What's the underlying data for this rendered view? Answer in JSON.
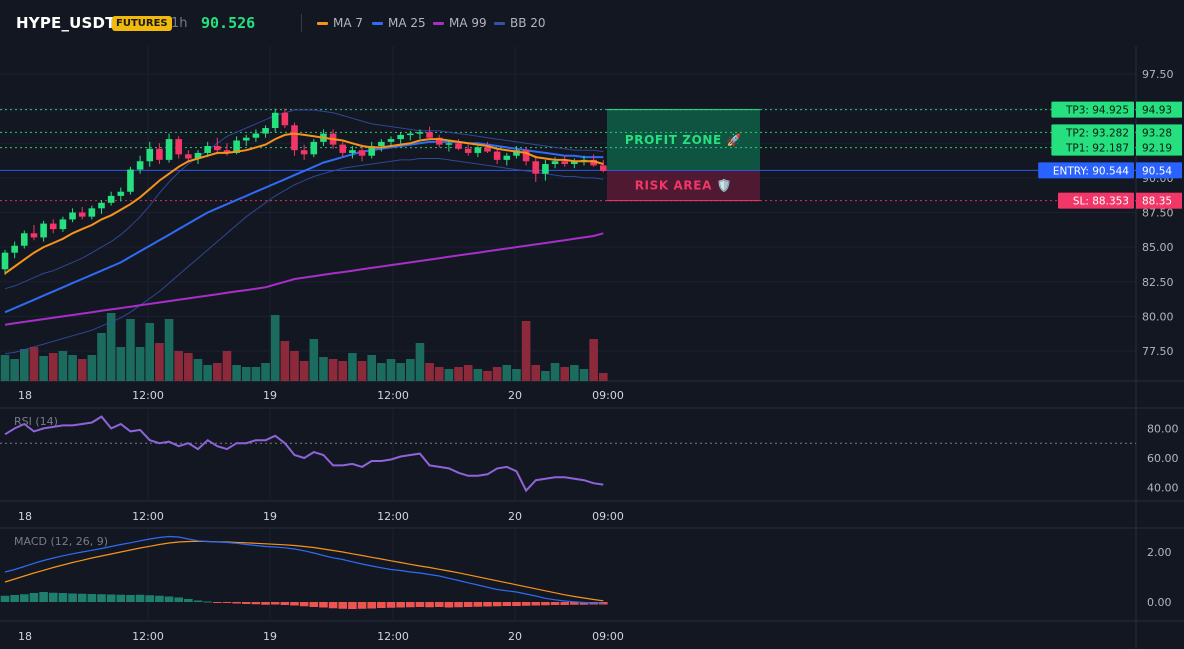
{
  "header": {
    "symbol": "HYPE_USDT",
    "badge": "FUTURES",
    "timeframe": "1h",
    "price": "90.526"
  },
  "legend": [
    {
      "label": "MA 7",
      "color": "#f7931a"
    },
    {
      "label": "MA 25",
      "color": "#2f6bf5"
    },
    {
      "label": "MA 99",
      "color": "#a72fc7"
    },
    {
      "label": "BB 20",
      "color": "#3550a8"
    }
  ],
  "colors": {
    "up": "#26e07f",
    "down": "#f23668",
    "vol_up": "#1b6b5e",
    "vol_down": "#8c2a3c",
    "rsi": "#8f63d9",
    "macd": "#2f6bf5",
    "signal": "#f7931a",
    "hist_up": "#1f7f6f",
    "hist_down": "#ef5350"
  },
  "chart_data": [
    {
      "type": "candlestick",
      "name": "price",
      "x_labels": [
        "18",
        "12:00",
        "19",
        "12:00",
        "20",
        "09:00"
      ],
      "y_ticks": [
        "97.50",
        "95.00",
        "92.50",
        "90.00",
        "87.50",
        "85.00",
        "82.50",
        "80.00",
        "77.50"
      ],
      "ylim": [
        75,
        100
      ],
      "ohlc": [
        [
          83.4,
          84.8,
          83.0,
          84.6
        ],
        [
          84.6,
          85.4,
          84.2,
          85.1
        ],
        [
          85.1,
          86.2,
          84.9,
          86.0
        ],
        [
          86.0,
          86.6,
          85.5,
          85.7
        ],
        [
          85.7,
          86.9,
          85.4,
          86.7
        ],
        [
          86.7,
          87.0,
          86.0,
          86.3
        ],
        [
          86.3,
          87.2,
          86.1,
          87.0
        ],
        [
          87.0,
          87.8,
          86.8,
          87.5
        ],
        [
          87.5,
          87.9,
          87.0,
          87.2
        ],
        [
          87.2,
          88.0,
          87.0,
          87.8
        ],
        [
          87.8,
          88.4,
          87.4,
          88.2
        ],
        [
          88.2,
          89.0,
          88.0,
          88.7
        ],
        [
          88.7,
          89.3,
          88.3,
          89.0
        ],
        [
          89.0,
          90.8,
          88.8,
          90.6
        ],
        [
          90.6,
          91.6,
          90.3,
          91.2
        ],
        [
          91.2,
          92.6,
          90.8,
          92.1
        ],
        [
          92.1,
          92.5,
          91.0,
          91.3
        ],
        [
          91.3,
          93.2,
          91.1,
          92.8
        ],
        [
          92.8,
          93.0,
          91.4,
          91.7
        ],
        [
          91.7,
          92.0,
          91.1,
          91.4
        ],
        [
          91.4,
          92.0,
          91.0,
          91.8
        ],
        [
          91.8,
          92.6,
          91.5,
          92.3
        ],
        [
          92.3,
          92.9,
          91.7,
          92.0
        ],
        [
          92.0,
          92.5,
          91.6,
          91.8
        ],
        [
          91.8,
          93.0,
          91.7,
          92.7
        ],
        [
          92.7,
          93.1,
          92.3,
          92.9
        ],
        [
          92.9,
          93.5,
          92.6,
          93.2
        ],
        [
          93.2,
          93.8,
          92.9,
          93.6
        ],
        [
          93.6,
          95.0,
          93.3,
          94.7
        ],
        [
          94.7,
          95.0,
          93.6,
          93.8
        ],
        [
          93.8,
          94.0,
          91.6,
          92.0
        ],
        [
          92.0,
          92.4,
          91.3,
          91.7
        ],
        [
          91.7,
          92.8,
          91.5,
          92.6
        ],
        [
          92.6,
          93.5,
          92.3,
          93.2
        ],
        [
          93.2,
          93.5,
          92.1,
          92.4
        ],
        [
          92.4,
          92.6,
          91.5,
          91.8
        ],
        [
          91.8,
          92.3,
          91.4,
          92.0
        ],
        [
          92.0,
          92.4,
          91.2,
          91.6
        ],
        [
          91.6,
          92.6,
          91.4,
          92.3
        ],
        [
          92.3,
          92.8,
          91.9,
          92.6
        ],
        [
          92.6,
          93.0,
          92.3,
          92.8
        ],
        [
          92.8,
          93.3,
          92.4,
          93.1
        ],
        [
          93.1,
          93.4,
          92.7,
          93.2
        ],
        [
          93.2,
          93.5,
          92.8,
          93.3
        ],
        [
          93.3,
          93.7,
          92.9,
          92.9
        ],
        [
          92.9,
          93.1,
          92.2,
          92.4
        ],
        [
          92.4,
          92.7,
          91.9,
          92.5
        ],
        [
          92.5,
          92.8,
          92.0,
          92.1
        ],
        [
          92.1,
          92.4,
          91.6,
          91.8
        ],
        [
          91.8,
          92.3,
          91.5,
          92.2
        ],
        [
          92.2,
          92.6,
          91.8,
          91.9
        ],
        [
          91.9,
          92.1,
          91.0,
          91.3
        ],
        [
          91.3,
          91.8,
          90.9,
          91.6
        ],
        [
          91.6,
          92.3,
          91.4,
          92.0
        ],
        [
          92.0,
          92.2,
          90.9,
          91.2
        ],
        [
          91.2,
          91.6,
          89.7,
          90.3
        ],
        [
          90.3,
          91.3,
          89.8,
          91.0
        ],
        [
          91.0,
          91.5,
          90.7,
          91.2
        ],
        [
          91.2,
          91.6,
          90.8,
          91.0
        ],
        [
          91.0,
          91.4,
          90.7,
          91.2
        ],
        [
          91.2,
          91.6,
          90.9,
          91.3
        ],
        [
          91.3,
          91.7,
          90.8,
          90.9
        ],
        [
          90.9,
          91.3,
          90.4,
          90.5
        ]
      ],
      "ma7": [
        83.1,
        83.6,
        84.1,
        84.6,
        85.0,
        85.3,
        85.6,
        86.0,
        86.3,
        86.6,
        87.0,
        87.3,
        87.7,
        88.1,
        88.6,
        89.2,
        89.8,
        90.3,
        90.8,
        91.2,
        91.4,
        91.6,
        91.8,
        91.8,
        91.9,
        92.0,
        92.2,
        92.4,
        92.8,
        93.1,
        93.2,
        93.1,
        93.0,
        92.9,
        92.8,
        92.7,
        92.5,
        92.3,
        92.2,
        92.2,
        92.3,
        92.4,
        92.5,
        92.7,
        92.8,
        92.8,
        92.7,
        92.6,
        92.5,
        92.4,
        92.3,
        92.1,
        92.0,
        91.9,
        91.8,
        91.5,
        91.4,
        91.3,
        91.3,
        91.2,
        91.2,
        91.2,
        91.0
      ],
      "ma25": [
        80.3,
        80.6,
        80.9,
        81.2,
        81.5,
        81.8,
        82.1,
        82.4,
        82.7,
        83.0,
        83.3,
        83.6,
        83.9,
        84.3,
        84.7,
        85.1,
        85.5,
        85.9,
        86.3,
        86.7,
        87.1,
        87.5,
        87.8,
        88.1,
        88.4,
        88.7,
        89.0,
        89.3,
        89.6,
        89.9,
        90.2,
        90.5,
        90.8,
        91.1,
        91.3,
        91.5,
        91.7,
        91.9,
        92.0,
        92.1,
        92.2,
        92.3,
        92.4,
        92.5,
        92.6,
        92.6,
        92.6,
        92.6,
        92.5,
        92.5,
        92.4,
        92.3,
        92.2,
        92.1,
        92.0,
        91.9,
        91.8,
        91.7,
        91.6,
        91.6,
        91.5,
        91.5,
        91.5
      ],
      "ma99": [
        79.4,
        79.5,
        79.6,
        79.7,
        79.8,
        79.9,
        80.0,
        80.1,
        80.2,
        80.3,
        80.4,
        80.5,
        80.6,
        80.7,
        80.8,
        80.9,
        81.0,
        81.1,
        81.2,
        81.3,
        81.4,
        81.5,
        81.6,
        81.7,
        81.8,
        81.9,
        82.0,
        82.1,
        82.3,
        82.5,
        82.7,
        82.8,
        82.9,
        83.0,
        83.1,
        83.2,
        83.3,
        83.4,
        83.5,
        83.6,
        83.7,
        83.8,
        83.9,
        84.0,
        84.1,
        84.2,
        84.3,
        84.4,
        84.5,
        84.6,
        84.7,
        84.8,
        84.9,
        85.0,
        85.1,
        85.2,
        85.3,
        85.4,
        85.5,
        85.6,
        85.7,
        85.8,
        86.0
      ],
      "bb_upper": [
        82.0,
        82.2,
        82.5,
        82.8,
        83.1,
        83.3,
        83.6,
        83.9,
        84.2,
        84.6,
        85.0,
        85.4,
        85.9,
        86.5,
        87.2,
        88.0,
        88.9,
        89.7,
        90.4,
        91.0,
        91.5,
        92.0,
        92.5,
        93.0,
        93.3,
        93.6,
        93.9,
        94.2,
        94.5,
        94.7,
        94.9,
        94.9,
        94.9,
        94.8,
        94.7,
        94.5,
        94.3,
        94.1,
        93.9,
        93.8,
        93.7,
        93.6,
        93.5,
        93.4,
        93.4,
        93.4,
        93.3,
        93.2,
        93.1,
        93.0,
        92.9,
        92.8,
        92.7,
        92.6,
        92.5,
        92.4,
        92.3,
        92.2,
        92.1,
        92.0,
        92.0,
        92.0,
        91.9
      ],
      "bb_lower": [
        77.3,
        77.4,
        77.6,
        77.8,
        78.0,
        78.2,
        78.4,
        78.6,
        78.8,
        79.0,
        79.3,
        79.6,
        79.9,
        80.3,
        80.8,
        81.3,
        81.8,
        82.4,
        83.0,
        83.6,
        84.2,
        84.8,
        85.4,
        86.0,
        86.6,
        87.2,
        87.7,
        88.2,
        88.7,
        89.1,
        89.5,
        89.8,
        90.1,
        90.3,
        90.5,
        90.7,
        90.8,
        90.9,
        91.0,
        91.1,
        91.2,
        91.3,
        91.3,
        91.4,
        91.4,
        91.4,
        91.3,
        91.2,
        91.1,
        91.0,
        90.9,
        90.8,
        90.7,
        90.6,
        90.5,
        90.4,
        90.3,
        90.2,
        90.1,
        90.1,
        90.0,
        90.0,
        89.9
      ],
      "volume": [
        26,
        22,
        32,
        34,
        25,
        28,
        30,
        26,
        22,
        26,
        48,
        68,
        34,
        62,
        34,
        58,
        38,
        62,
        30,
        28,
        22,
        16,
        18,
        30,
        16,
        14,
        14,
        18,
        66,
        40,
        30,
        20,
        42,
        24,
        22,
        20,
        28,
        20,
        26,
        18,
        22,
        18,
        22,
        38,
        18,
        14,
        12,
        14,
        16,
        12,
        10,
        14,
        16,
        12,
        60,
        16,
        10,
        18,
        14,
        16,
        12,
        42,
        8
      ],
      "levels": [
        {
          "label": "TP3: 94.925",
          "value": 94.925,
          "axis": "94.93",
          "color": "#26e07f"
        },
        {
          "label": "TP2: 93.282",
          "value": 93.282,
          "axis": "93.28",
          "color": "#26e07f"
        },
        {
          "label": "TP1: 92.187",
          "value": 92.187,
          "axis": "92.19",
          "color": "#26e07f"
        },
        {
          "label": "ENTRY: 90.544",
          "value": 90.544,
          "axis": "90.54",
          "color": "#2962ff"
        },
        {
          "label": "SL: 88.353",
          "value": 88.353,
          "axis": "88.35",
          "color": "#f23668"
        }
      ],
      "zones": {
        "profit": "PROFIT ZONE 🚀",
        "risk": "RISK AREA 🛡️"
      }
    },
    {
      "type": "line",
      "name": "RSI (14)",
      "y_ticks": [
        "80.00",
        "60.00",
        "40.00"
      ],
      "ylim": [
        30,
        92
      ],
      "overbought": 70,
      "values": [
        76,
        80,
        83,
        78,
        80,
        81,
        82,
        82,
        83,
        84,
        88,
        80,
        83,
        78,
        79,
        72,
        70,
        71,
        68,
        70,
        66,
        72,
        68,
        66,
        70,
        70,
        72,
        72,
        75,
        70,
        62,
        60,
        64,
        62,
        55,
        55,
        56,
        54,
        58,
        58,
        59,
        61,
        62,
        63,
        55,
        54,
        53,
        50,
        48,
        48,
        49,
        53,
        54,
        51,
        38,
        45,
        46,
        47,
        47,
        46,
        45,
        43,
        42
      ]
    },
    {
      "type": "line",
      "name": "MACD (12, 26, 9)",
      "y_ticks": [
        "2.00",
        "0.00"
      ],
      "ylim": [
        -0.5,
        3.0
      ],
      "macd": [
        1.2,
        1.3,
        1.42,
        1.55,
        1.66,
        1.76,
        1.85,
        1.93,
        2.0,
        2.07,
        2.14,
        2.22,
        2.3,
        2.37,
        2.45,
        2.52,
        2.58,
        2.62,
        2.6,
        2.52,
        2.45,
        2.42,
        2.4,
        2.38,
        2.35,
        2.3,
        2.26,
        2.22,
        2.2,
        2.17,
        2.12,
        2.05,
        1.96,
        1.86,
        1.77,
        1.7,
        1.61,
        1.52,
        1.44,
        1.37,
        1.3,
        1.26,
        1.2,
        1.16,
        1.1,
        1.04,
        0.95,
        0.86,
        0.77,
        0.68,
        0.59,
        0.5,
        0.45,
        0.4,
        0.32,
        0.24,
        0.15,
        0.09,
        0.04,
        0.01,
        -0.02,
        -0.04,
        -0.05
      ],
      "signal": [
        0.8,
        0.92,
        1.04,
        1.16,
        1.27,
        1.38,
        1.48,
        1.58,
        1.67,
        1.76,
        1.84,
        1.92,
        2.0,
        2.08,
        2.16,
        2.23,
        2.3,
        2.36,
        2.4,
        2.42,
        2.43,
        2.42,
        2.41,
        2.4,
        2.38,
        2.37,
        2.35,
        2.33,
        2.31,
        2.29,
        2.26,
        2.22,
        2.18,
        2.12,
        2.06,
        2.0,
        1.93,
        1.86,
        1.79,
        1.72,
        1.65,
        1.58,
        1.51,
        1.44,
        1.38,
        1.31,
        1.24,
        1.17,
        1.09,
        1.01,
        0.93,
        0.85,
        0.77,
        0.69,
        0.61,
        0.53,
        0.45,
        0.37,
        0.29,
        0.22,
        0.16,
        0.1,
        0.05
      ],
      "histogram": [
        0.25,
        0.28,
        0.31,
        0.36,
        0.4,
        0.37,
        0.36,
        0.34,
        0.33,
        0.32,
        0.31,
        0.3,
        0.29,
        0.28,
        0.29,
        0.27,
        0.25,
        0.22,
        0.18,
        0.12,
        0.06,
        0.02,
        -0.02,
        -0.04,
        -0.06,
        -0.08,
        -0.09,
        -0.11,
        -0.1,
        -0.12,
        -0.14,
        -0.17,
        -0.2,
        -0.22,
        -0.25,
        -0.27,
        -0.28,
        -0.27,
        -0.26,
        -0.24,
        -0.23,
        -0.22,
        -0.21,
        -0.2,
        -0.21,
        -0.2,
        -0.22,
        -0.21,
        -0.2,
        -0.19,
        -0.18,
        -0.17,
        -0.16,
        -0.16,
        -0.15,
        -0.14,
        -0.13,
        -0.12,
        -0.12,
        -0.11,
        -0.11,
        -0.1,
        -0.1
      ]
    }
  ]
}
